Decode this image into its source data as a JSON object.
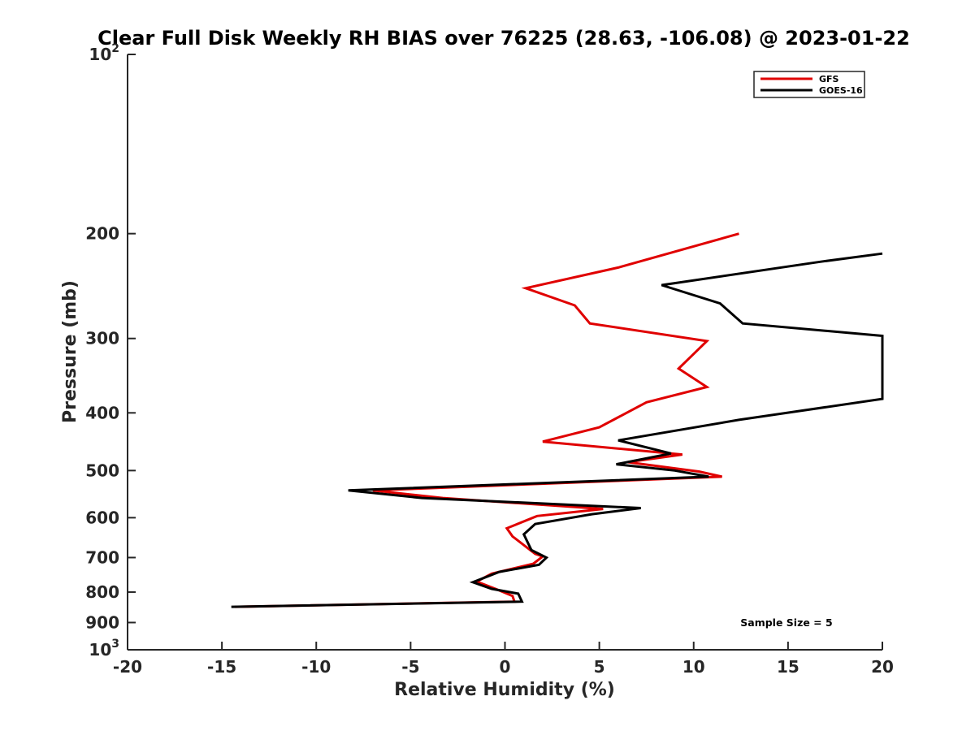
{
  "chart_data": {
    "type": "line",
    "title": "Clear Full Disk Weekly RH BIAS over 76225 (28.63, -106.08) @ 2023-01-22",
    "xlabel": "Relative Humidity (%)",
    "ylabel": "Pressure (mb)",
    "xlim": [
      -20,
      20
    ],
    "ylim": [
      100,
      1000
    ],
    "y_scale": "log",
    "y_reversed": true,
    "x_ticks": [
      -20,
      -15,
      -10,
      -5,
      0,
      5,
      10,
      15,
      20
    ],
    "x_tick_labels": [
      "-20",
      "-15",
      "-10",
      "-5",
      "0",
      "5",
      "10",
      "15",
      "20"
    ],
    "y_ticks": [
      {
        "value": 100,
        "base": "10",
        "exp": "2"
      },
      {
        "value": 200,
        "label": "200"
      },
      {
        "value": 300,
        "label": "300"
      },
      {
        "value": 400,
        "label": "400"
      },
      {
        "value": 500,
        "label": "500"
      },
      {
        "value": 600,
        "label": "600"
      },
      {
        "value": 700,
        "label": "700"
      },
      {
        "value": 800,
        "label": "800"
      },
      {
        "value": 900,
        "label": "900"
      },
      {
        "value": 1000,
        "base": "10",
        "exp": "3"
      }
    ],
    "grid": false,
    "legend_position": "top-right",
    "annotation": "Sample Size = 5",
    "series": [
      {
        "name": "GFS",
        "color": "#e00000",
        "points": [
          [
            12.4,
            200
          ],
          [
            6,
            228
          ],
          [
            1.1,
            247
          ],
          [
            3.7,
            264
          ],
          [
            4.5,
            283
          ],
          [
            10.7,
            303
          ],
          [
            9.2,
            337
          ],
          [
            10.7,
            362
          ],
          [
            7.5,
            384
          ],
          [
            5,
            423
          ],
          [
            2,
            447
          ],
          [
            9.4,
            470
          ],
          [
            6.5,
            484
          ],
          [
            10.3,
            502
          ],
          [
            11.5,
            512
          ],
          [
            -7,
            540
          ],
          [
            -3.3,
            556
          ],
          [
            5.2,
            580
          ],
          [
            1.7,
            596
          ],
          [
            0.1,
            625
          ],
          [
            0.4,
            645
          ],
          [
            1.6,
            690
          ],
          [
            2,
            697
          ],
          [
            1.5,
            717
          ],
          [
            -0.7,
            745
          ],
          [
            -1.5,
            768
          ],
          [
            -0.5,
            790
          ],
          [
            0.4,
            812
          ],
          [
            0.5,
            830
          ],
          [
            -14.3,
            847
          ]
        ]
      },
      {
        "name": "GOES-16",
        "color": "#000000",
        "points": [
          [
            20,
            216
          ],
          [
            16.7,
            223
          ],
          [
            8.3,
            244
          ],
          [
            11.4,
            262
          ],
          [
            12.6,
            283
          ],
          [
            20,
            297
          ],
          [
            20,
            379
          ],
          [
            12.4,
            411
          ],
          [
            6,
            445
          ],
          [
            8.8,
            468
          ],
          [
            5.9,
            488
          ],
          [
            9,
            500
          ],
          [
            10.8,
            512
          ],
          [
            -8.3,
            540
          ],
          [
            -4.4,
            556
          ],
          [
            7.2,
            578
          ],
          [
            4.6,
            592
          ],
          [
            1.6,
            615
          ],
          [
            1,
            640
          ],
          [
            1.4,
            680
          ],
          [
            2.2,
            700
          ],
          [
            1.8,
            720
          ],
          [
            -0.3,
            740
          ],
          [
            -1.7,
            770
          ],
          [
            -0.7,
            790
          ],
          [
            0.7,
            805
          ],
          [
            0.9,
            830
          ],
          [
            -14.5,
            847
          ]
        ]
      }
    ]
  }
}
